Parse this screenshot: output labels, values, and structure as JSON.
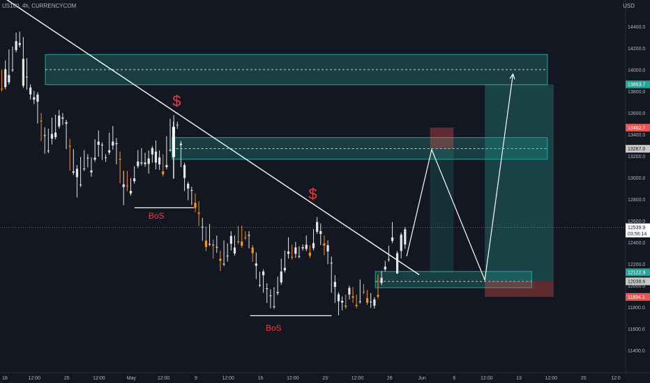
{
  "header": {
    "symbol_line": "US100, 4h, CURRENCYCOM",
    "currency": "USD"
  },
  "colors": {
    "bg": "#131722",
    "up": "#e6e6e6",
    "down": "#f7931a",
    "zone": "#26a69a",
    "stop": "#ef5350",
    "red_text": "#ef3b3b",
    "trend": "#ffffff"
  },
  "chart_data": {
    "type": "candlestick",
    "symbol": "US100",
    "timeframe": "4h",
    "source": "CURRENCYCOM",
    "ylim": [
      11400,
      14650
    ],
    "y_ticks": [
      11400,
      11600,
      11800,
      12000,
      12200,
      12400,
      12600,
      12800,
      13000,
      13200,
      13400,
      13600,
      13800,
      14000,
      14200,
      14400
    ],
    "x_ticks": [
      "18",
      "12:00",
      "25",
      "12:00",
      "May",
      "12:00",
      "9",
      "12:00",
      "16",
      "12:00",
      "23",
      "12:00",
      "26",
      "Jun",
      "6",
      "12:00",
      "13",
      "12:00",
      "20",
      "12:0"
    ],
    "price_labels": [
      {
        "value": 13863.7,
        "text": "13863.7",
        "kind": "zone"
      },
      {
        "value": 13462.7,
        "text": "13462.7",
        "kind": "stop"
      },
      {
        "value": 13267.0,
        "text": "13267.0",
        "kind": "neutral"
      },
      {
        "value": 12539.9,
        "text": "12539.9",
        "sub": "03:56:14",
        "kind": "current"
      },
      {
        "value": 12122.9,
        "text": "12122.9",
        "kind": "zone"
      },
      {
        "value": 12038.6,
        "text": "12038.6",
        "kind": "neutral"
      },
      {
        "value": 11894.1,
        "text": "11894.1",
        "kind": "stop"
      }
    ],
    "zones": [
      {
        "name": "supply-zone-upper",
        "from": 13860,
        "to": 14140,
        "mid": 14000,
        "t0": 0.29,
        "t1": 3.5
      },
      {
        "name": "supply-zone-middle",
        "from": 13170,
        "to": 13370,
        "mid": 13267,
        "t0": 1.1,
        "t1": 3.5
      },
      {
        "name": "demand-zone-lower",
        "from": 11980,
        "to": 12130,
        "mid": 12038,
        "t0": 2.4,
        "t1": 3.4
      }
    ],
    "annotations": [
      {
        "name": "bos-label-left",
        "text": "BoS",
        "t": 1.0,
        "price": 12620
      },
      {
        "name": "bos-label-right",
        "text": "BoS",
        "t": 1.75,
        "price": 11580
      },
      {
        "name": "dollar-label-top",
        "text": "$",
        "t": 1.13,
        "price": 13660
      },
      {
        "name": "dollar-label-mid",
        "text": "$",
        "t": 2.0,
        "price": 12800
      }
    ],
    "bos_lines": [
      {
        "t0": 0.86,
        "t1": 1.24,
        "price": 12720
      },
      {
        "t0": 1.6,
        "t1": 2.12,
        "price": 11720
      }
    ],
    "trendline": {
      "t0": 0,
      "p0": 14690,
      "t1": 2.68,
      "p1": 12100
    },
    "projection": [
      [
        2.6,
        12270
      ],
      [
        2.76,
        13260
      ],
      [
        3.1,
        12050
      ],
      [
        3.28,
        13960
      ]
    ],
    "short_position": {
      "t0": 2.75,
      "t1": 2.9,
      "entry": 13267,
      "stop": 13462.7,
      "target": 12120
    },
    "long_position": {
      "t0": 3.1,
      "t1": 3.54,
      "entry": 12038.6,
      "stop": 11894.1,
      "target": 13863.7
    },
    "current_price": 12539.9,
    "candles_ohlc": [
      [
        13823,
        13822,
        13818,
        13978
      ],
      [
        13838,
        14004,
        13885,
        14065
      ],
      [
        13883,
        13950,
        13918,
        14166
      ],
      [
        14000,
        14001,
        14043,
        14194
      ],
      [
        14180,
        14264,
        14211,
        14324
      ],
      [
        14228,
        14247,
        14226,
        14332
      ],
      [
        13850,
        14100,
        13986,
        14282
      ],
      [
        13934,
        13934,
        13834,
        14087
      ],
      [
        13770,
        13834,
        13743,
        13843
      ],
      [
        13722,
        13744,
        13701,
        13783
      ],
      [
        13702,
        13770,
        13521,
        13772
      ],
      [
        13527,
        13526,
        13356,
        13577
      ],
      [
        13391,
        13392,
        13241,
        13445
      ],
      [
        13247,
        13250,
        13252,
        13433
      ],
      [
        13361,
        13404,
        13327,
        13534
      ],
      [
        13374,
        13417,
        13417,
        13562
      ],
      [
        13474,
        13574,
        13553,
        13607
      ],
      [
        13546,
        13557,
        13508,
        13577
      ],
      [
        13498,
        13513,
        13283,
        13515
      ],
      [
        13294,
        13291,
        13083,
        13337
      ],
      [
        13045,
        13058,
        13046,
        13244
      ],
      [
        13004,
        13081,
        12835,
        13096
      ],
      [
        12933,
        12935,
        13001,
        13171
      ],
      [
        13080,
        13084,
        13102,
        13233
      ],
      [
        13178,
        13183,
        13114,
        13196
      ],
      [
        13048,
        13066,
        13028,
        13168
      ],
      [
        13166,
        13184,
        13174,
        13335
      ],
      [
        13303,
        13334,
        13213,
        13417
      ],
      [
        13305,
        13305,
        13183,
        13306
      ],
      [
        13188,
        13188,
        13165,
        13197
      ],
      [
        13232,
        13253,
        13306,
        13396
      ],
      [
        13297,
        13334,
        13278,
        13458
      ],
      [
        13310,
        13318,
        13143,
        13347
      ],
      [
        13174,
        13172,
        12967,
        13221
      ],
      [
        12912,
        12937,
        12764,
        13042
      ],
      [
        12925,
        12919,
        12894,
        13041
      ],
      [
        12853,
        12877,
        12937,
        12975
      ],
      [
        12966,
        12993,
        12964,
        13084
      ],
      [
        13106,
        13149,
        13130,
        13235
      ],
      [
        13131,
        13140,
        13170,
        13254
      ],
      [
        13124,
        13139,
        13120,
        13210
      ],
      [
        13126,
        13177,
        13056,
        13232
      ],
      [
        13215,
        13273,
        13157,
        13261
      ],
      [
        13139,
        13241,
        13096,
        13324
      ],
      [
        13122,
        13186,
        13090,
        13232
      ],
      [
        13057,
        13031,
        13083,
        13196
      ],
      [
        13096,
        13116,
        13177,
        13363
      ],
      [
        13258,
        13258,
        13335,
        13525
      ],
      [
        13425,
        13425,
        13465,
        13558
      ],
      [
        13488,
        13490,
        13472,
        13498
      ],
      [
        13300,
        13315,
        13117,
        13319
      ],
      [
        12996,
        13117,
        12895,
        13091
      ],
      [
        12898,
        12943,
        12810,
        12933
      ],
      [
        12881,
        12884,
        12765,
        12896
      ],
      [
        12767,
        12720,
        12700,
        12833
      ],
      [
        12675,
        12664,
        12572,
        12762
      ],
      [
        12544,
        12544,
        12434,
        12607
      ],
      [
        12416,
        12357,
        12338,
        12527
      ],
      [
        12386,
        12386,
        12438,
        12551
      ],
      [
        12381,
        12370,
        12271,
        12407
      ],
      [
        12351,
        12358,
        12323,
        12443
      ],
      [
        12248,
        12228,
        12155,
        12303
      ],
      [
        12200,
        12202,
        12285,
        12397
      ],
      [
        12275,
        12276,
        12241,
        12371
      ],
      [
        12386,
        12459,
        12344,
        12483
      ],
      [
        12297,
        12352,
        12304,
        12443
      ],
      [
        12410,
        12402,
        12488,
        12531
      ],
      [
        12407,
        12369,
        12459,
        12533
      ],
      [
        12446,
        12441,
        12458,
        12481
      ],
      [
        12461,
        12468,
        12363,
        12483
      ],
      [
        12352,
        12299,
        12240,
        12356
      ],
      [
        12182,
        12204,
        12080,
        12286
      ],
      [
        12005,
        12006,
        12028,
        12108
      ],
      [
        12095,
        12130,
        11953,
        12125
      ],
      [
        11974,
        11974,
        11859,
        12000
      ],
      [
        11903,
        11908,
        11810,
        11946
      ],
      [
        11805,
        11806,
        11837,
        11965
      ],
      [
        11929,
        11939,
        11980,
        12062
      ],
      [
        12028,
        12130,
        12075,
        12228
      ],
      [
        12140,
        12163,
        12245,
        12304
      ],
      [
        12293,
        12315,
        12269,
        12427
      ],
      [
        12266,
        12260,
        12274,
        12359
      ],
      [
        12294,
        12353,
        12276,
        12384
      ],
      [
        12273,
        12273,
        12281,
        12343
      ],
      [
        12344,
        12355,
        12352,
        12360
      ],
      [
        12338,
        12378,
        12339,
        12444
      ],
      [
        12304,
        12275,
        12327,
        12353
      ],
      [
        12345,
        12393,
        12386,
        12503
      ],
      [
        12498,
        12588,
        12505,
        12615
      ],
      [
        12477,
        12504,
        12395,
        12555
      ],
      [
        12389,
        12370,
        12301,
        12444
      ],
      [
        12316,
        12372,
        12217,
        12398
      ],
      [
        12209,
        12211,
        11953,
        12248
      ],
      [
        11986,
        12034,
        11859,
        12076
      ],
      [
        11854,
        11918,
        11744,
        11883
      ],
      [
        11842,
        11858,
        11790,
        11878
      ],
      [
        11814,
        11803,
        11842,
        11896
      ],
      [
        11917,
        11978,
        11891,
        11951
      ],
      [
        11900,
        11888,
        11859,
        11967
      ],
      [
        11821,
        11810,
        11826,
        11895
      ],
      [
        11853,
        11853,
        11955,
        12036
      ],
      [
        11944,
        11941,
        11955,
        11993
      ],
      [
        11883,
        11841,
        11853,
        11939
      ],
      [
        11850,
        11850,
        11812,
        11909
      ],
      [
        11813,
        11871,
        11806,
        11838
      ],
      [
        11912,
        11897,
        11981,
        12082
      ],
      [
        12024,
        12071,
        12088,
        12115
      ],
      [
        12149,
        12175,
        12184,
        12208
      ],
      [
        12241,
        12243,
        12260,
        12349
      ],
      [
        12413,
        12445,
        12480,
        12568
      ]
    ],
    "highlight_candle": {
      "t": 1.11,
      "open": 13190,
      "high": 13520,
      "low": 12990,
      "close": 13470
    },
    "last_candles": [
      [
        12110,
        12160,
        12200,
        12320
      ],
      [
        12320,
        12330,
        12310,
        12490
      ],
      [
        12380,
        12380,
        12400,
        12540
      ]
    ]
  }
}
